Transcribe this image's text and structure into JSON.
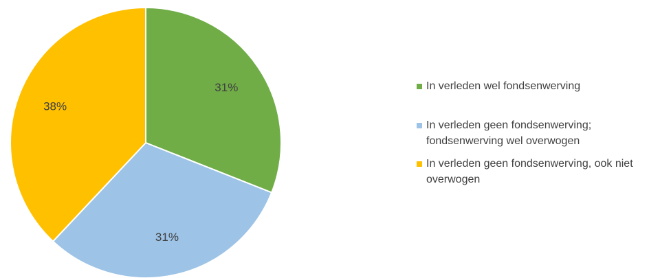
{
  "chart_data": {
    "type": "pie",
    "categories": [
      "In verleden wel fondsenwerving",
      "In verleden geen fondsenwerving; fondsenwerving wel overwogen",
      "In verleden geen fondsenwerving, ook niet overwogen"
    ],
    "values": [
      31,
      31,
      38
    ],
    "value_labels": [
      "31%",
      "31%",
      "38%"
    ],
    "colors": [
      "#70ad47",
      "#9dc3e6",
      "#ffc000"
    ],
    "legend": "right"
  }
}
